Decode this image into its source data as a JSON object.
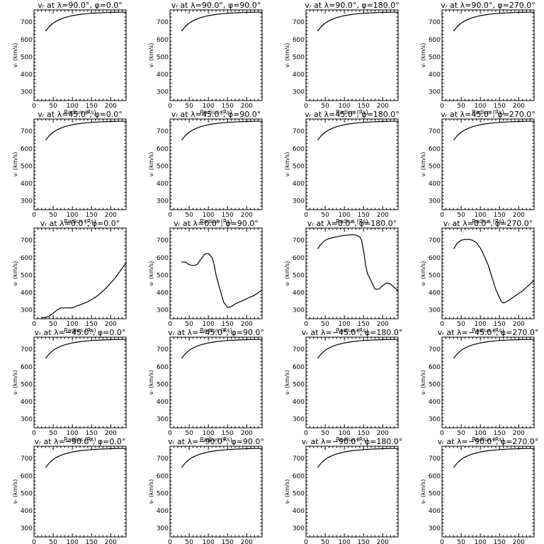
{
  "chart_data": {
    "type": "line",
    "grid": "5x4",
    "xlabel": "Radius (Rs)",
    "ylabel": "vᵣ (km/s)",
    "xlim": [
      0,
      240
    ],
    "ylim": [
      250,
      770
    ],
    "xticks": [
      0,
      50,
      100,
      150,
      200
    ],
    "yticks": [
      300,
      400,
      500,
      600,
      700
    ],
    "panels": [
      {
        "title": "vᵣ at λ=90.0°, φ=0.0°",
        "profile": "fast"
      },
      {
        "title": "vᵣ at λ=90.0°, φ=90.0°",
        "profile": "fast"
      },
      {
        "title": "vᵣ at λ=90.0°, φ=180.0°",
        "profile": "fast"
      },
      {
        "title": "vᵣ at λ=90.0°, φ=270.0°",
        "profile": "fast"
      },
      {
        "title": "vᵣ at λ=45.0°, φ=0.0°",
        "profile": "fast"
      },
      {
        "title": "vᵣ at λ=45.0°, φ=90.0°",
        "profile": "fast"
      },
      {
        "title": "vᵣ at λ=45.0°, φ=180.0°",
        "profile": "fast"
      },
      {
        "title": "vᵣ at λ=45.0°, φ=270.0°",
        "profile": "fast"
      },
      {
        "title": "vᵣ at λ=0.0°, φ=0.0°",
        "x": [
          20,
          30,
          40,
          50,
          60,
          70,
          80,
          90,
          100,
          110,
          120,
          130,
          140,
          150,
          160,
          170,
          180,
          190,
          200,
          210,
          220,
          230,
          240
        ],
        "y": [
          255,
          258,
          265,
          282,
          300,
          312,
          312,
          312,
          313,
          322,
          330,
          338,
          348,
          360,
          373,
          390,
          410,
          430,
          455,
          480,
          510,
          540,
          570
        ]
      },
      {
        "title": "vᵣ at λ=0.0°, φ=90.0°",
        "x": [
          30,
          40,
          50,
          60,
          70,
          80,
          90,
          100,
          110,
          115,
          120,
          130,
          140,
          150,
          160,
          170,
          180,
          190,
          200,
          210,
          220,
          230,
          240
        ],
        "y": [
          575,
          575,
          560,
          555,
          560,
          590,
          620,
          625,
          600,
          560,
          500,
          420,
          345,
          315,
          320,
          335,
          345,
          355,
          365,
          375,
          385,
          400,
          415
        ]
      },
      {
        "title": "vᵣ at λ=0.0°, φ=180.0°",
        "x": [
          30,
          40,
          50,
          60,
          70,
          80,
          90,
          100,
          110,
          120,
          130,
          140,
          145,
          150,
          155,
          160,
          170,
          180,
          190,
          200,
          210,
          220,
          230,
          240
        ],
        "y": [
          650,
          680,
          700,
          710,
          715,
          720,
          725,
          728,
          730,
          732,
          730,
          720,
          700,
          640,
          560,
          510,
          465,
          420,
          420,
          440,
          455,
          450,
          430,
          410
        ]
      },
      {
        "title": "vᵣ at λ=0.0°, φ=270.0°",
        "x": [
          30,
          40,
          50,
          60,
          70,
          80,
          90,
          100,
          110,
          120,
          130,
          140,
          150,
          155,
          160,
          170,
          180,
          190,
          200,
          210,
          220,
          230,
          240
        ],
        "y": [
          650,
          685,
          700,
          705,
          705,
          700,
          685,
          655,
          610,
          560,
          490,
          420,
          370,
          348,
          340,
          350,
          365,
          380,
          395,
          410,
          430,
          450,
          470
        ]
      },
      {
        "title": "vᵣ at λ=−45.0°, φ=0.0°",
        "profile": "fast"
      },
      {
        "title": "vᵣ at λ=−45.0°, φ=90.0°",
        "profile": "fast"
      },
      {
        "title": "vᵣ at λ=−45.0°, φ=180.0°",
        "profile": "fast"
      },
      {
        "title": "vᵣ at λ=−45.0°, φ=270.0°",
        "profile": "fast"
      },
      {
        "title": "vᵣ at λ=−90.0°, φ=0.0°",
        "profile": "fast"
      },
      {
        "title": "vᵣ at λ=−90.0°, φ=90.0°",
        "profile": "fast"
      },
      {
        "title": "vᵣ at λ=−90.0°, φ=180.0°",
        "profile": "fast"
      },
      {
        "title": "vᵣ at λ=−90.0°, φ=270.0°",
        "profile": "fast"
      }
    ],
    "profiles": {
      "fast": {
        "x": [
          30,
          40,
          50,
          60,
          70,
          80,
          90,
          100,
          110,
          120,
          130,
          140,
          150,
          160,
          170,
          180,
          190,
          200,
          210,
          220,
          230,
          240
        ],
        "y": [
          648,
          675,
          695,
          708,
          718,
          726,
          732,
          737,
          741,
          744,
          747,
          749,
          751,
          752,
          753,
          754,
          755,
          756,
          756,
          757,
          757,
          757
        ]
      }
    }
  }
}
